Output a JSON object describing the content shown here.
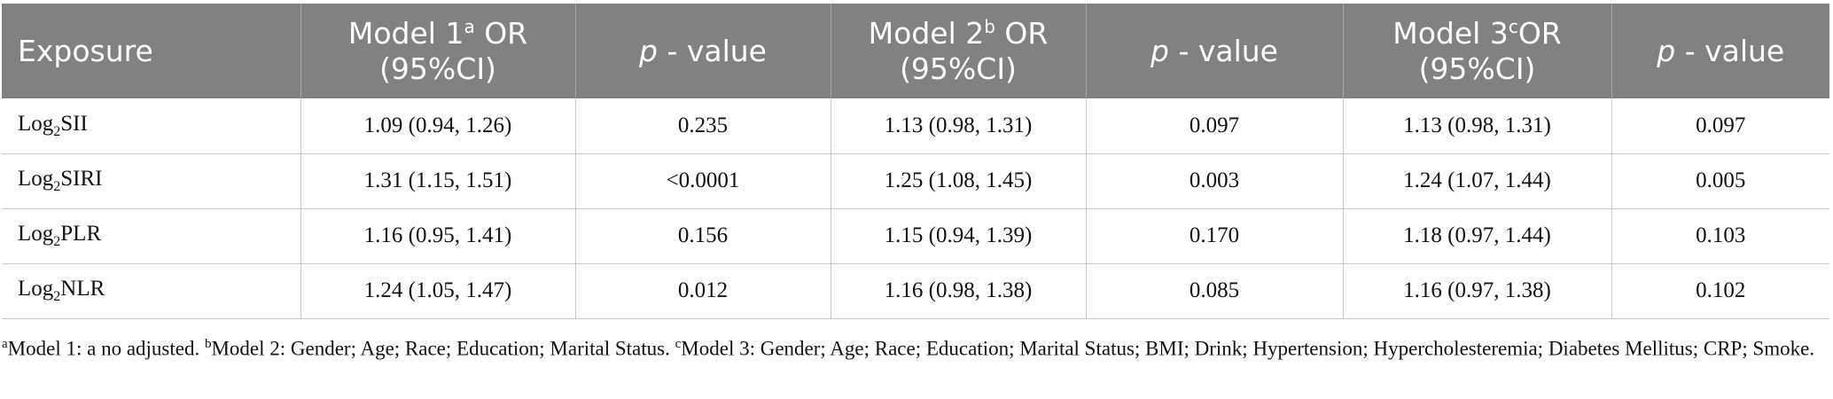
{
  "header": {
    "exposure": "Exposure",
    "model1": {
      "title": "Model 1",
      "mark": "a",
      "or": " OR",
      "ci": "(95%CI)"
    },
    "pvalue_p": "p",
    "pvalue_rest": "- value",
    "model2": {
      "title": "Model 2",
      "mark": "b",
      "or": " OR",
      "ci": "(95%CI)"
    },
    "model3": {
      "title": "Model 3",
      "mark": "c",
      "or": "OR",
      "ci": "(95%CI)"
    }
  },
  "rows": [
    {
      "prefix": "Log",
      "sub": "2",
      "name": "SII",
      "m1": "1.09 (0.94, 1.26)",
      "p1": "0.235",
      "m2": "1.13 (0.98, 1.31)",
      "p2": "0.097",
      "m3": "1.13 (0.98, 1.31)",
      "p3": "0.097"
    },
    {
      "prefix": "Log",
      "sub": "2",
      "name": "SIRI",
      "m1": "1.31 (1.15, 1.51)",
      "p1": "<0.0001",
      "m2": "1.25 (1.08, 1.45)",
      "p2": "0.003",
      "m3": "1.24 (1.07, 1.44)",
      "p3": "0.005"
    },
    {
      "prefix": "Log",
      "sub": "2",
      "name": "PLR",
      "m1": "1.16 (0.95, 1.41)",
      "p1": "0.156",
      "m2": "1.15 (0.94, 1.39)",
      "p2": "0.170",
      "m3": "1.18 (0.97, 1.44)",
      "p3": "0.103"
    },
    {
      "prefix": "Log",
      "sub": "2",
      "name": "NLR",
      "m1": "1.24 (1.05, 1.47)",
      "p1": "0.012",
      "m2": "1.16 (0.98, 1.38)",
      "p2": "0.085",
      "m3": "1.16 (0.97, 1.38)",
      "p3": "0.102"
    }
  ],
  "footnote": {
    "a_mark": "a",
    "a_text": "Model 1: a no adjusted. ",
    "b_mark": "b",
    "b_text": "Model 2: Gender; Age; Race; Education; Marital Status. ",
    "c_mark": "c",
    "c_text": "Model 3: Gender; Age; Race; Education; Marital Status; BMI; Drink; Hypertension; Hypercholesteremia; Diabetes Mellitus; CRP; Smoke."
  }
}
